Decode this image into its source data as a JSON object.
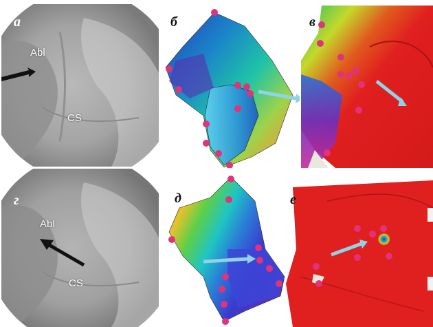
{
  "panels": [
    {
      "letter": "а",
      "kind": "fluoroscopy",
      "labels": [
        "Abl",
        "CS"
      ]
    },
    {
      "letter": "б",
      "kind": "activation-map"
    },
    {
      "letter": "в",
      "kind": "activation-map"
    },
    {
      "letter": "г",
      "kind": "fluoroscopy",
      "labels": [
        "Abl",
        "CS"
      ]
    },
    {
      "letter": "д",
      "kind": "activation-map"
    },
    {
      "letter": "е",
      "kind": "activation-map"
    }
  ],
  "colors": {
    "catheter_point": "#e0337a",
    "arrow_black": "#111111",
    "arrow_blue": "#8fd3e6",
    "map_red": "#e01f1f"
  }
}
